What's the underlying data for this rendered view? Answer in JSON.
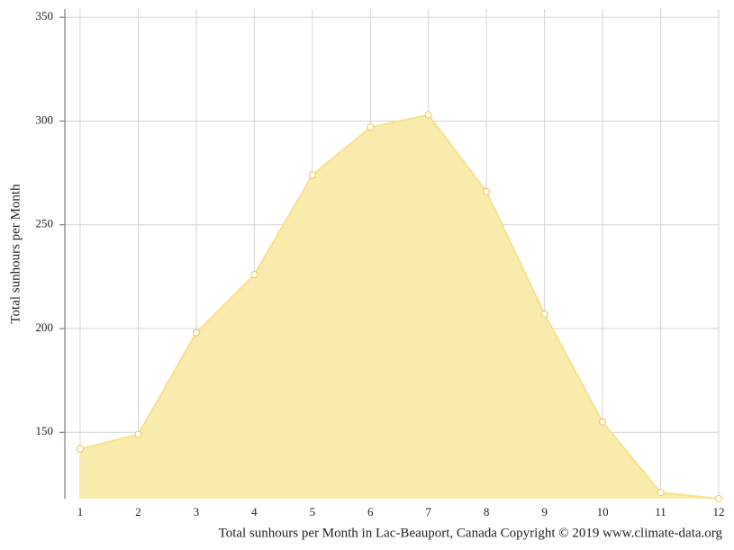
{
  "chart_data": {
    "type": "area",
    "y_label": "Total sunhours per Month",
    "caption": "Total sunhours per Month in Lac-Beauport, Canada Copyright © 2019 www.climate-data.org",
    "x": [
      1,
      2,
      3,
      4,
      5,
      6,
      7,
      8,
      9,
      10,
      11,
      12
    ],
    "values": [
      142,
      149,
      198,
      226,
      274,
      297,
      303,
      266,
      207,
      155,
      121,
      118
    ],
    "color": "#f9eaa6",
    "line_color": "#f8e28e",
    "point_color": "#e9ca4e",
    "xlim": [
      1,
      12
    ],
    "ylim": [
      118,
      354
    ],
    "yticks": [
      150,
      200,
      250,
      300,
      350
    ],
    "grid": true
  }
}
